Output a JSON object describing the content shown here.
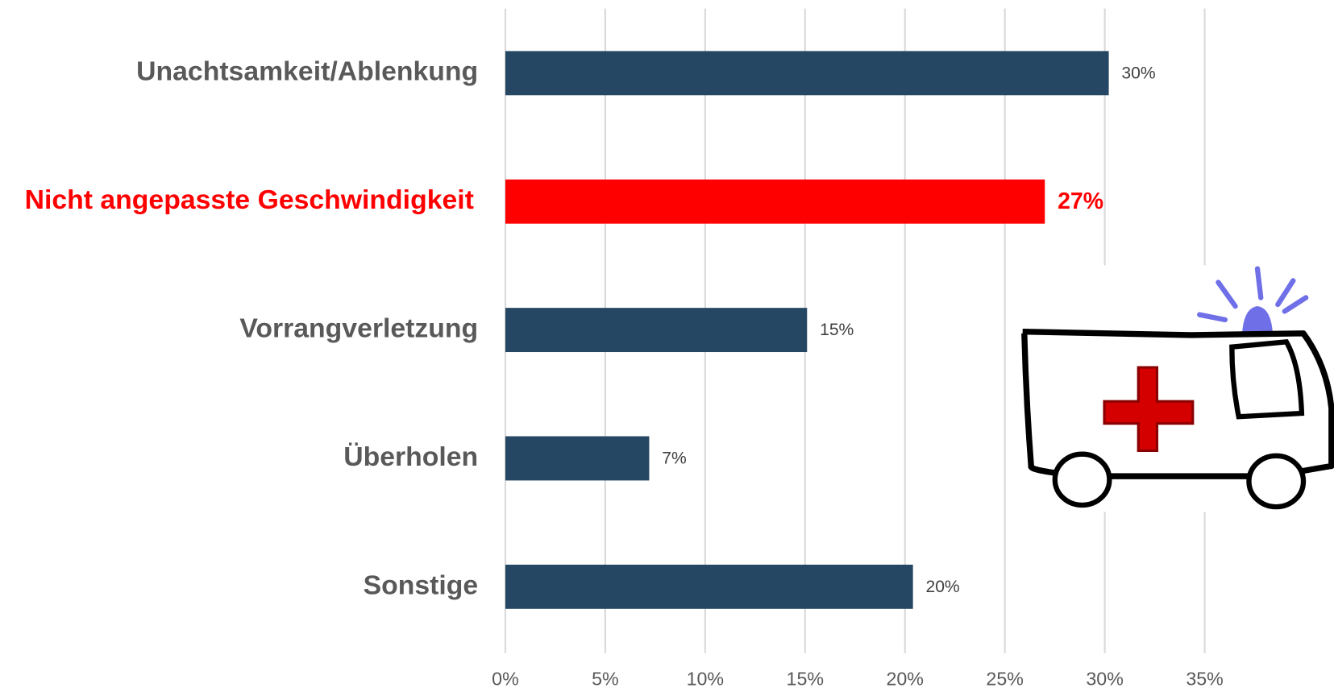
{
  "chart_data": {
    "type": "barh",
    "categories": [
      "Unachtsamkeit/Ablenkung",
      "Nicht angepasste Geschwindigkeit",
      "Vorrangverletzung",
      "Überholen",
      "Sonstige"
    ],
    "values": [
      30.2,
      27,
      15.1,
      7.2,
      20.4
    ],
    "value_labels": [
      "30%",
      "27%",
      "15%",
      "7%",
      "20%"
    ],
    "colors": [
      "#264763",
      "#ff0000",
      "#264763",
      "#264763",
      "#264763"
    ],
    "xlim": [
      0,
      35
    ],
    "xticks": [
      {
        "value": 0,
        "label": "0%"
      },
      {
        "value": 5,
        "label": "5%"
      },
      {
        "value": 10,
        "label": "10%"
      },
      {
        "value": 15,
        "label": "15%"
      },
      {
        "value": 20,
        "label": "20%"
      },
      {
        "value": 25,
        "label": "25%"
      },
      {
        "value": 30,
        "label": "30%"
      },
      {
        "value": 35,
        "label": "35%"
      }
    ],
    "grid": true
  }
}
